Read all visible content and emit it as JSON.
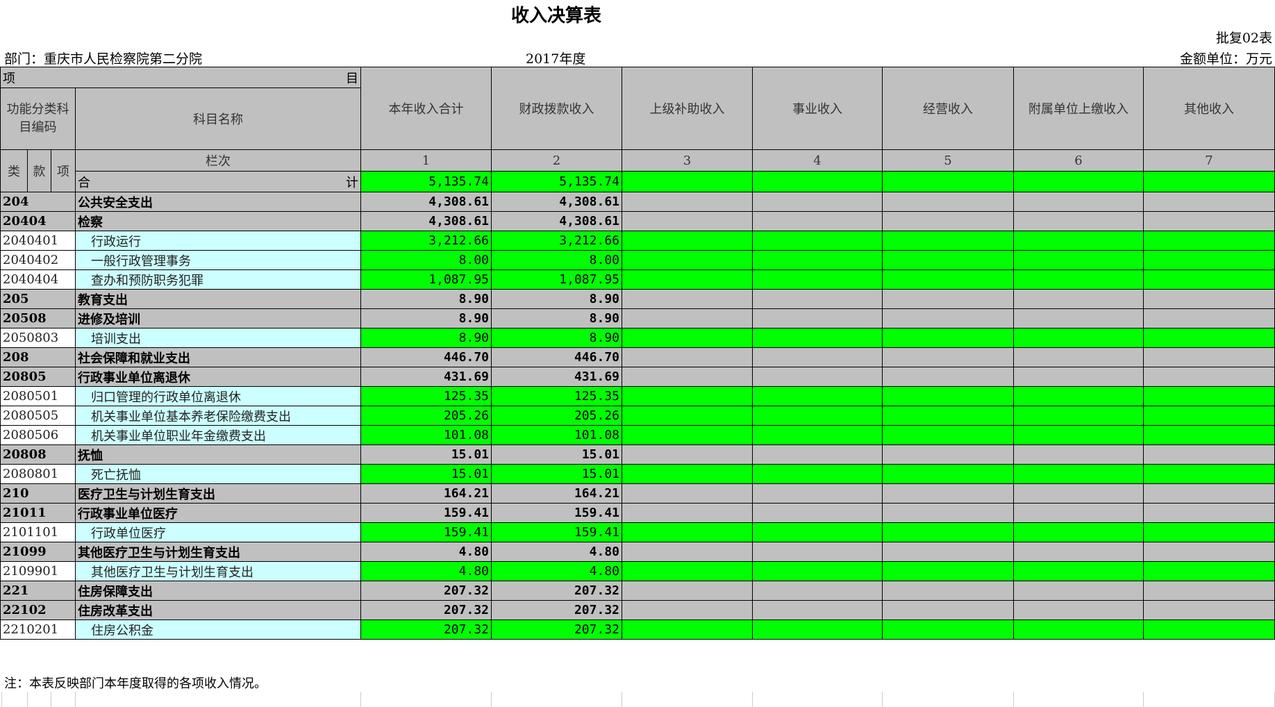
{
  "title": "收入决算表",
  "form_no": "批复02表",
  "department": "部门：重庆市人民检察院第二分院",
  "year": "2017年度",
  "unit": "金额单位：万元",
  "header": {
    "item_left": "项",
    "item_right": "目",
    "code_label": "功能分类科目编码",
    "name_label": "科目名称",
    "columns": [
      "本年收入合计",
      "财政拨款收入",
      "上级补助收入",
      "事业收入",
      "经营收入",
      "附属单位上缴收入",
      "其他收入"
    ],
    "lei": "类",
    "kuan": "款",
    "xiang": "项",
    "lanci": "栏次",
    "col_numbers": [
      "1",
      "2",
      "3",
      "4",
      "5",
      "6",
      "7"
    ],
    "total_left": "合",
    "total_right": "计",
    "total_values": [
      "5,135.74",
      "5,135.74",
      "",
      "",
      "",
      "",
      ""
    ]
  },
  "rows": [
    {
      "code": "204",
      "name": "公共安全支出",
      "total": "4,308.61",
      "fiscal": "4,308.61",
      "level": "summary"
    },
    {
      "code": "20404",
      "name": "检察",
      "total": "4,308.61",
      "fiscal": "4,308.61",
      "level": "summary"
    },
    {
      "code": "2040401",
      "name": "行政运行",
      "total": "3,212.66",
      "fiscal": "3,212.66",
      "level": "detail"
    },
    {
      "code": "2040402",
      "name": "一般行政管理事务",
      "total": "8.00",
      "fiscal": "8.00",
      "level": "detail"
    },
    {
      "code": "2040404",
      "name": "查办和预防职务犯罪",
      "total": "1,087.95",
      "fiscal": "1,087.95",
      "level": "detail"
    },
    {
      "code": "205",
      "name": "教育支出",
      "total": "8.90",
      "fiscal": "8.90",
      "level": "summary"
    },
    {
      "code": "20508",
      "name": "进修及培训",
      "total": "8.90",
      "fiscal": "8.90",
      "level": "summary"
    },
    {
      "code": "2050803",
      "name": "培训支出",
      "total": "8.90",
      "fiscal": "8.90",
      "level": "detail"
    },
    {
      "code": "208",
      "name": "社会保障和就业支出",
      "total": "446.70",
      "fiscal": "446.70",
      "level": "summary"
    },
    {
      "code": "20805",
      "name": "行政事业单位离退休",
      "total": "431.69",
      "fiscal": "431.69",
      "level": "summary"
    },
    {
      "code": "2080501",
      "name": "归口管理的行政单位离退休",
      "total": "125.35",
      "fiscal": "125.35",
      "level": "detail"
    },
    {
      "code": "2080505",
      "name": "机关事业单位基本养老保险缴费支出",
      "total": "205.26",
      "fiscal": "205.26",
      "level": "detail"
    },
    {
      "code": "2080506",
      "name": "机关事业单位职业年金缴费支出",
      "total": "101.08",
      "fiscal": "101.08",
      "level": "detail"
    },
    {
      "code": "20808",
      "name": "抚恤",
      "total": "15.01",
      "fiscal": "15.01",
      "level": "summary"
    },
    {
      "code": "2080801",
      "name": "死亡抚恤",
      "total": "15.01",
      "fiscal": "15.01",
      "level": "detail"
    },
    {
      "code": "210",
      "name": "医疗卫生与计划生育支出",
      "total": "164.21",
      "fiscal": "164.21",
      "level": "summary"
    },
    {
      "code": "21011",
      "name": "行政事业单位医疗",
      "total": "159.41",
      "fiscal": "159.41",
      "level": "summary"
    },
    {
      "code": "2101101",
      "name": "行政单位医疗",
      "total": "159.41",
      "fiscal": "159.41",
      "level": "detail"
    },
    {
      "code": "21099",
      "name": "其他医疗卫生与计划生育支出",
      "total": "4.80",
      "fiscal": "4.80",
      "level": "summary"
    },
    {
      "code": "2109901",
      "name": "其他医疗卫生与计划生育支出",
      "total": "4.80",
      "fiscal": "4.80",
      "level": "detail"
    },
    {
      "code": "221",
      "name": "住房保障支出",
      "total": "207.32",
      "fiscal": "207.32",
      "level": "summary"
    },
    {
      "code": "22102",
      "name": "住房改革支出",
      "total": "207.32",
      "fiscal": "207.32",
      "level": "summary"
    },
    {
      "code": "2210201",
      "name": "住房公积金",
      "total": "207.32",
      "fiscal": "207.32",
      "level": "detail"
    }
  ],
  "note": "注：本表反映部门本年度取得的各项收入情况。",
  "colors": {
    "header_gray": "#c0c0c0",
    "value_green": "#00ff00",
    "name_cyan": "#ccffff"
  }
}
